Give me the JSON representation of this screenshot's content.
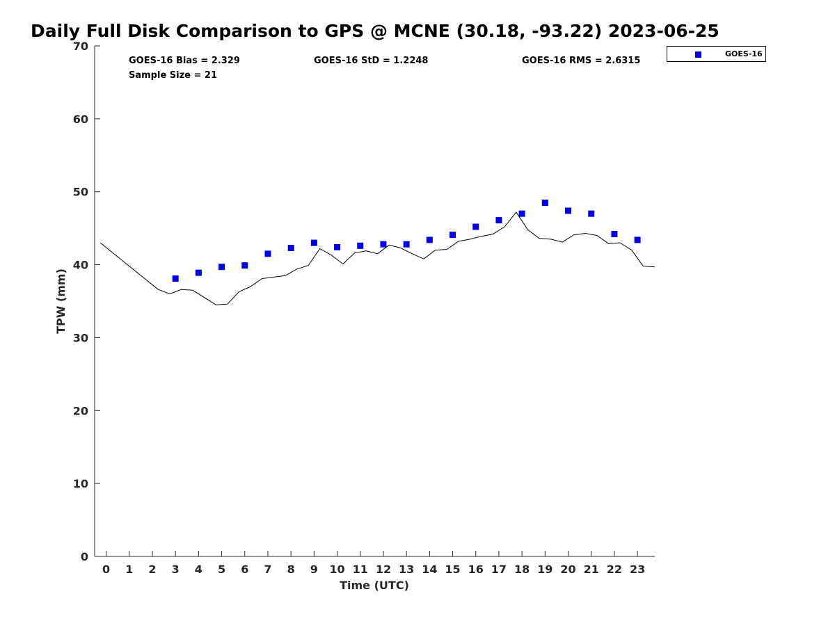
{
  "chart_data": {
    "type": "scatter",
    "title": "Daily Full Disk Comparison to GPS @ MCNE (30.18, -93.22) 2023-06-25",
    "xlabel": "Time (UTC)",
    "ylabel": "TPW (mm)",
    "xlim": [
      -0.5,
      23.75
    ],
    "ylim": [
      0,
      70
    ],
    "x_ticks": [
      0,
      1,
      2,
      3,
      4,
      5,
      6,
      7,
      8,
      9,
      10,
      11,
      12,
      13,
      14,
      15,
      16,
      17,
      18,
      19,
      20,
      21,
      22,
      23
    ],
    "y_ticks": [
      0,
      10,
      20,
      30,
      40,
      50,
      60,
      70
    ],
    "grid": false,
    "legend_position": "top-right, outside plot",
    "stats": {
      "bias": "GOES-16 Bias = 2.329",
      "std": "GOES-16 StD = 1.2248",
      "rms": "GOES-16 RMS = 2.6315",
      "sample_size": "Sample Size = 21"
    },
    "series": [
      {
        "name": "GOES-16",
        "kind": "scatter",
        "marker": "square",
        "color": "#0000e6",
        "x": [
          3,
          4,
          5,
          6,
          7,
          8,
          9,
          10,
          11,
          12,
          13,
          14,
          15,
          16,
          17,
          18,
          19,
          20,
          21,
          22,
          23
        ],
        "y": [
          38.1,
          38.9,
          39.7,
          39.9,
          41.5,
          42.3,
          43.0,
          42.4,
          42.6,
          42.8,
          42.8,
          43.4,
          44.1,
          45.2,
          46.1,
          47.0,
          48.5,
          47.4,
          47.0,
          44.2,
          43.4
        ]
      },
      {
        "kind": "line",
        "color": "#000000",
        "x": [
          -0.25,
          2.25,
          2.75,
          3.25,
          3.75,
          4.75,
          5.25,
          5.75,
          6.25,
          6.75,
          7.25,
          7.75,
          8.25,
          8.75,
          9.25,
          9.75,
          10.25,
          10.75,
          11.25,
          11.75,
          12.25,
          12.75,
          13.25,
          13.75,
          14.25,
          14.75,
          15.25,
          15.75,
          16.25,
          16.75,
          17.25,
          17.75,
          18.25,
          18.75,
          19.25,
          19.75,
          20.25,
          20.75,
          21.25,
          21.75,
          22.25,
          22.75,
          23.25,
          23.75
        ],
        "y": [
          43.0,
          36.6,
          36.0,
          36.6,
          36.5,
          34.5,
          34.6,
          36.3,
          37.0,
          38.1,
          38.3,
          38.5,
          39.4,
          39.9,
          42.2,
          41.3,
          40.1,
          41.6,
          41.9,
          41.5,
          42.7,
          42.3,
          41.5,
          40.8,
          42.0,
          42.1,
          43.2,
          43.5,
          43.9,
          44.2,
          45.2,
          47.2,
          44.8,
          43.6,
          43.5,
          43.1,
          44.1,
          44.3,
          44.0,
          42.9,
          43.0,
          42.0,
          39.8,
          39.7
        ]
      }
    ]
  }
}
